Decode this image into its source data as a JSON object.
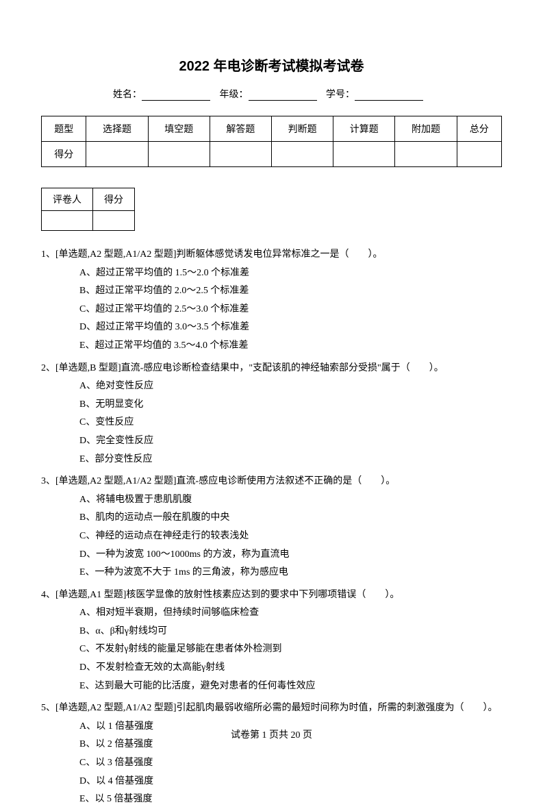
{
  "title": "2022 年电诊断考试模拟考试卷",
  "info": {
    "name_label": "姓名：",
    "grade_label": "年级：",
    "id_label": "学号："
  },
  "score_table": {
    "headers": [
      "题型",
      "选择题",
      "填空题",
      "解答题",
      "判断题",
      "计算题",
      "附加题",
      "总分"
    ],
    "row_label": "得分"
  },
  "mini_table": {
    "col1": "评卷人",
    "col2": "得分"
  },
  "questions": [
    {
      "stem": "1、[单选题,A2 型题,A1/A2 型题]判断躯体感觉诱发电位异常标准之一是（　　）。",
      "options": [
        "A、超过正常平均值的 1.5～2.0 个标准差",
        "B、超过正常平均值的 2.0～2.5 个标准差",
        "C、超过正常平均值的 2.5～3.0 个标准差",
        "D、超过正常平均值的 3.0～3.5 个标准差",
        "E、超过正常平均值的 3.5～4.0 个标准差"
      ]
    },
    {
      "stem": "2、[单选题,B 型题]直流-感应电诊断检查结果中，\"支配该肌的神经轴索部分受损\"属于（　　）。",
      "options": [
        "A、绝对变性反应",
        "B、无明显变化",
        "C、变性反应",
        "D、完全变性反应",
        "E、部分变性反应"
      ]
    },
    {
      "stem": "3、[单选题,A2 型题,A1/A2 型题]直流-感应电诊断使用方法叙述不正确的是（　　）。",
      "options": [
        "A、将辅电极置于患肌肌腹",
        "B、肌肉的运动点一般在肌腹的中央",
        "C、神经的运动点在神经走行的较表浅处",
        "D、一种为波宽 100～1000ms 的方波，称为直流电",
        "E、一种为波宽不大于 1ms 的三角波，称为感应电"
      ]
    },
    {
      "stem": "4、[单选题,A1 型题]核医学显像的放射性核素应达到的要求中下列哪项错误（　　）。",
      "options": [
        "A、相对短半衰期，但持续时间够临床检查",
        "B、α、β和γ射线均可",
        "C、不发射γ射线的能量足够能在患者体外检测到",
        "D、不发射检查无效的太高能γ射线",
        "E、达到最大可能的比活度，避免对患者的任何毒性效应"
      ]
    },
    {
      "stem": "5、[单选题,A2 型题,A1/A2 型题]引起肌肉最弱收缩所必需的最短时间称为时值，所需的刺激强度为（　　）。",
      "options": [
        "A、以 1 倍基强度",
        "B、以 2 倍基强度",
        "C、以 3 倍基强度",
        "D、以 4 倍基强度",
        "E、以 5 倍基强度"
      ]
    }
  ],
  "footer": "试卷第 1 页共 20 页"
}
